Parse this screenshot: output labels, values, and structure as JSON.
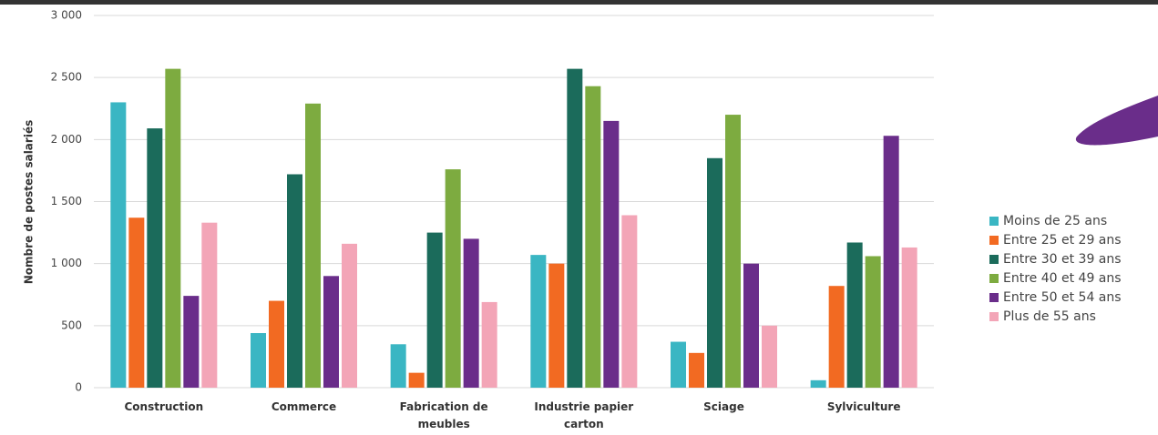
{
  "chart_data": {
    "type": "bar",
    "y_label": "Nombre de postes salariés",
    "categories": [
      "Construction",
      "Commerce",
      "Fabrication de meubles",
      "Industrie papier carton",
      "Sciage",
      "Sylviculture"
    ],
    "series": [
      {
        "name": "Moins de 25 ans",
        "color": "#3ab6c3",
        "values": [
          2300,
          440,
          350,
          1070,
          370,
          60
        ]
      },
      {
        "name": "Entre 25 et 29 ans",
        "color": "#f26a22",
        "values": [
          1370,
          700,
          120,
          1000,
          280,
          820
        ]
      },
      {
        "name": "Entre 30 et 39 ans",
        "color": "#1b6b5b",
        "values": [
          2090,
          1720,
          1250,
          2570,
          1850,
          1170
        ]
      },
      {
        "name": "Entre 40 et 49 ans",
        "color": "#7dab40",
        "values": [
          2570,
          2290,
          1760,
          2430,
          2200,
          1060
        ]
      },
      {
        "name": "Entre 50 et 54 ans",
        "color": "#6a2d8a",
        "values": [
          740,
          900,
          1200,
          2150,
          1000,
          2030
        ]
      },
      {
        "name": "Plus de 55 ans",
        "color": "#f3a5b7",
        "values": [
          1330,
          1160,
          690,
          1390,
          500,
          1130
        ]
      }
    ],
    "ylim": [
      0,
      3000
    ],
    "yticks": [
      0,
      500,
      {
        "value": 1000,
        "label": "1 000"
      },
      {
        "value": 1500,
        "label": "1 500"
      },
      {
        "value": 2000,
        "label": "2 000"
      },
      {
        "value": 2500,
        "label": "2 500"
      },
      {
        "value": 3000,
        "label": "3 000"
      }
    ],
    "grid": true
  }
}
